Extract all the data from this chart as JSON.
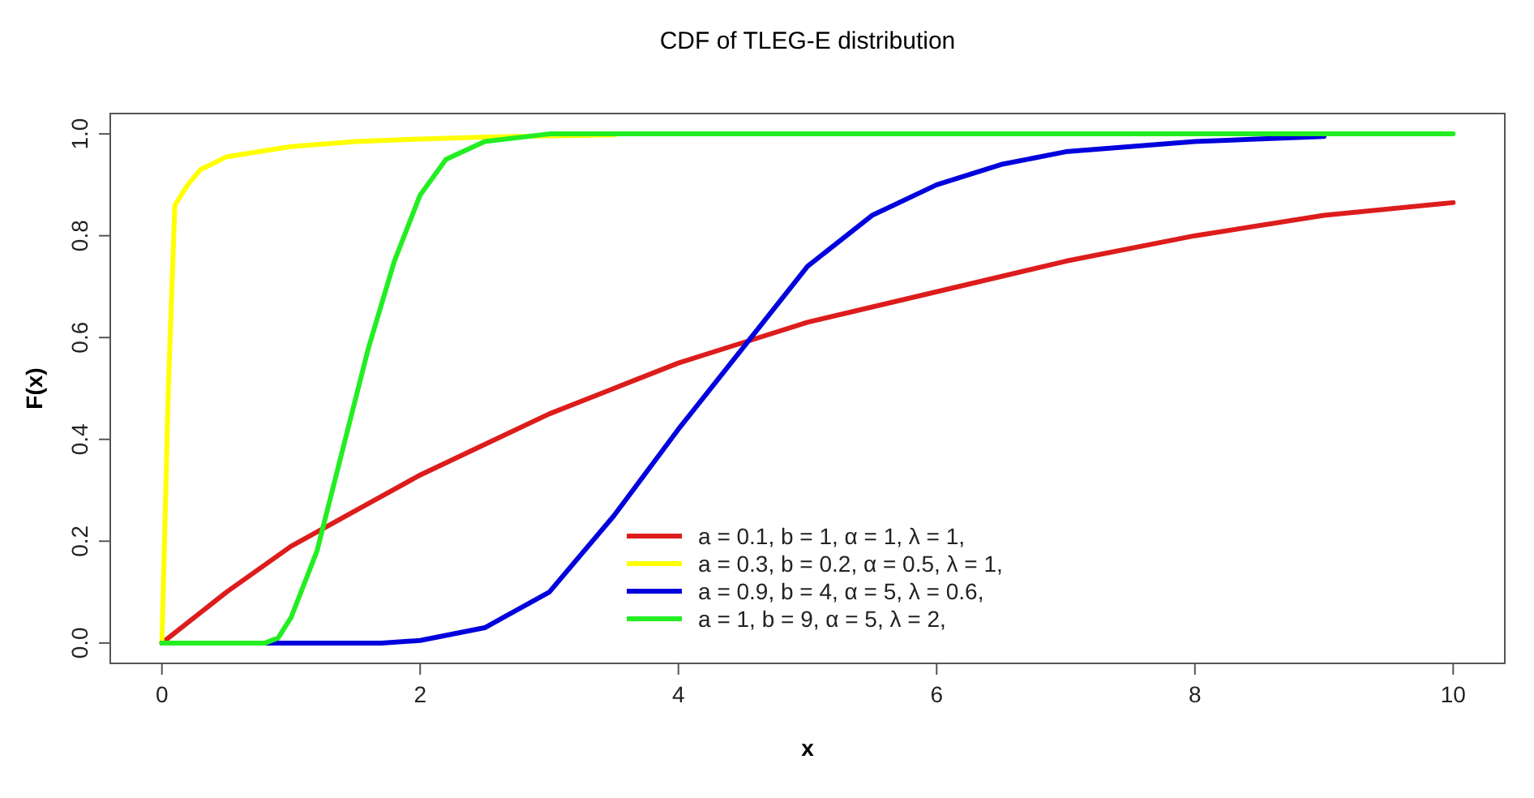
{
  "chart_data": {
    "type": "line",
    "title": "CDF of TLEG-E distribution",
    "xlabel": "x",
    "ylabel": "F(x)",
    "xlim": [
      -0.4,
      10.4
    ],
    "ylim": [
      -0.04,
      1.04
    ],
    "xticks": [
      0,
      2,
      4,
      6,
      8,
      10
    ],
    "yticks": [
      {
        "value": 0,
        "label": "0.0"
      },
      {
        "value": 0.2,
        "label": "0.2"
      },
      {
        "value": 0.4,
        "label": "0.4"
      },
      {
        "value": 0.6,
        "label": "0.6"
      },
      {
        "value": 0.8,
        "label": "0.8"
      },
      {
        "value": 1,
        "label": "1.0"
      }
    ],
    "grid": false,
    "legend": "bottom",
    "marker": "none",
    "line_style": "solid",
    "series": [
      {
        "name": "a = 0.1, b = 1, α = 1, λ = 1,",
        "color": "#dd1c1c",
        "x": [
          0,
          0.5,
          1,
          1.5,
          2,
          2.5,
          3,
          3.5,
          4,
          4.5,
          5,
          6,
          7,
          8,
          9,
          10
        ],
        "values": [
          0,
          0.1,
          0.19,
          0.26,
          0.33,
          0.39,
          0.45,
          0.5,
          0.55,
          0.59,
          0.63,
          0.69,
          0.75,
          0.8,
          0.84,
          0.865
        ]
      },
      {
        "name": "a = 0.3, b = 0.2, α = 0.5, λ = 1,",
        "color": "#ffff00",
        "x": [
          0,
          0.05,
          0.1,
          0.2,
          0.3,
          0.5,
          0.75,
          1,
          1.5,
          2,
          2.5,
          3,
          3.5
        ],
        "values": [
          0,
          0.5,
          0.86,
          0.9,
          0.93,
          0.955,
          0.965,
          0.975,
          0.985,
          0.99,
          0.994,
          0.996,
          0.998
        ]
      },
      {
        "name": "a = 0.9, b = 4, α = 5, λ = 0.6,",
        "color": "#0000dd",
        "x": [
          0,
          1.7,
          2,
          2.5,
          3,
          3.5,
          4,
          4.5,
          5,
          5.5,
          6,
          6.5,
          7,
          8,
          9
        ],
        "values": [
          0,
          0,
          0.005,
          0.03,
          0.1,
          0.25,
          0.42,
          0.58,
          0.74,
          0.84,
          0.9,
          0.94,
          0.965,
          0.985,
          0.995
        ]
      },
      {
        "name": "a = 1, b = 9, α = 5, λ = 2,",
        "color": "#22ee22",
        "x": [
          0,
          0.8,
          0.9,
          1,
          1.2,
          1.4,
          1.6,
          1.8,
          2,
          2.2,
          2.5,
          3,
          10
        ],
        "values": [
          0,
          0,
          0.01,
          0.05,
          0.18,
          0.38,
          0.58,
          0.75,
          0.88,
          0.95,
          0.985,
          1,
          1
        ]
      }
    ]
  }
}
